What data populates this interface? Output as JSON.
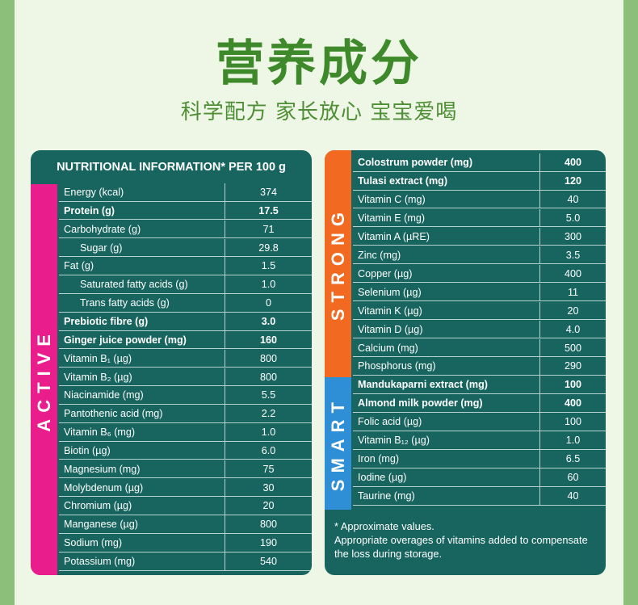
{
  "header": {
    "title": "营养成分",
    "subtitle": "科学配方 家长放心 宝宝爱喝"
  },
  "left_panel": {
    "heading": "NUTRITIONAL INFORMATION* PER 100 g",
    "side_label": "ACTIVE",
    "rows": [
      {
        "label": "Energy (kcal)",
        "value": "374"
      },
      {
        "label": "Protein (g)",
        "value": "17.5",
        "bold": true
      },
      {
        "label": "Carbohydrate (g)",
        "value": "71"
      },
      {
        "label": "Sugar (g)",
        "value": "29.8",
        "indent": true
      },
      {
        "label": "Fat (g)",
        "value": "1.5"
      },
      {
        "label": "Saturated fatty acids (g)",
        "value": "1.0",
        "indent": true
      },
      {
        "label": "Trans fatty acids (g)",
        "value": "0",
        "indent": true
      },
      {
        "label": "Prebiotic fibre (g)",
        "value": "3.0",
        "bold": true
      },
      {
        "label": "Ginger juice powder (mg)",
        "value": "160",
        "bold": true
      },
      {
        "label": "Vitamin B₁ (µg)",
        "value": "800"
      },
      {
        "label": "Vitamin B₂ (µg)",
        "value": "800"
      },
      {
        "label": "Niacinamide (mg)",
        "value": "5.5"
      },
      {
        "label": "Pantothenic acid (mg)",
        "value": "2.2"
      },
      {
        "label": "Vitamin B₆ (mg)",
        "value": "1.0"
      },
      {
        "label": "Biotin (µg)",
        "value": "6.0"
      },
      {
        "label": "Magnesium (mg)",
        "value": "75"
      },
      {
        "label": "Molybdenum (µg)",
        "value": "30"
      },
      {
        "label": "Chromium (µg)",
        "value": "20"
      },
      {
        "label": "Manganese (µg)",
        "value": "800"
      },
      {
        "label": "Sodium (mg)",
        "value": "190"
      },
      {
        "label": "Potassium (mg)",
        "value": "540"
      }
    ]
  },
  "right_panel": {
    "strong_label": "STRONG",
    "smart_label": "SMART",
    "rows": [
      {
        "label": "Colostrum powder (mg)",
        "value": "400",
        "bold": true
      },
      {
        "label": "Tulasi extract (mg)",
        "value": "120",
        "bold": true
      },
      {
        "label": "Vitamin C (mg)",
        "value": "40"
      },
      {
        "label": "Vitamin E (mg)",
        "value": "5.0"
      },
      {
        "label": "Vitamin A (µRE)",
        "value": "300"
      },
      {
        "label": "Zinc (mg)",
        "value": "3.5"
      },
      {
        "label": "Copper (µg)",
        "value": "400"
      },
      {
        "label": "Selenium (µg)",
        "value": "11"
      },
      {
        "label": "Vitamin K (µg)",
        "value": "20"
      },
      {
        "label": "Vitamin D (µg)",
        "value": "4.0"
      },
      {
        "label": "Calcium (mg)",
        "value": "500"
      },
      {
        "label": "Phosphorus (mg)",
        "value": "290"
      },
      {
        "label": "Mandukaparni extract (mg)",
        "value": "100",
        "bold": true
      },
      {
        "label": "Almond milk powder (mg)",
        "value": "400",
        "bold": true
      },
      {
        "label": "Folic acid (µg)",
        "value": "100"
      },
      {
        "label": "Vitamin B₁₂ (µg)",
        "value": "1.0"
      },
      {
        "label": "Iron (mg)",
        "value": "6.5"
      },
      {
        "label": "Iodine (µg)",
        "value": "60"
      },
      {
        "label": "Taurine (mg)",
        "value": "40"
      }
    ],
    "footnote_line1": "* Approximate values.",
    "footnote_line2": "Appropriate overages of vitamins added to compensate the loss during storage."
  },
  "colors": {
    "panel": "#18655f",
    "active": "#e91e8c",
    "strong": "#f26a21",
    "smart": "#2f8fd6",
    "title_green": "#3e8a2a"
  }
}
